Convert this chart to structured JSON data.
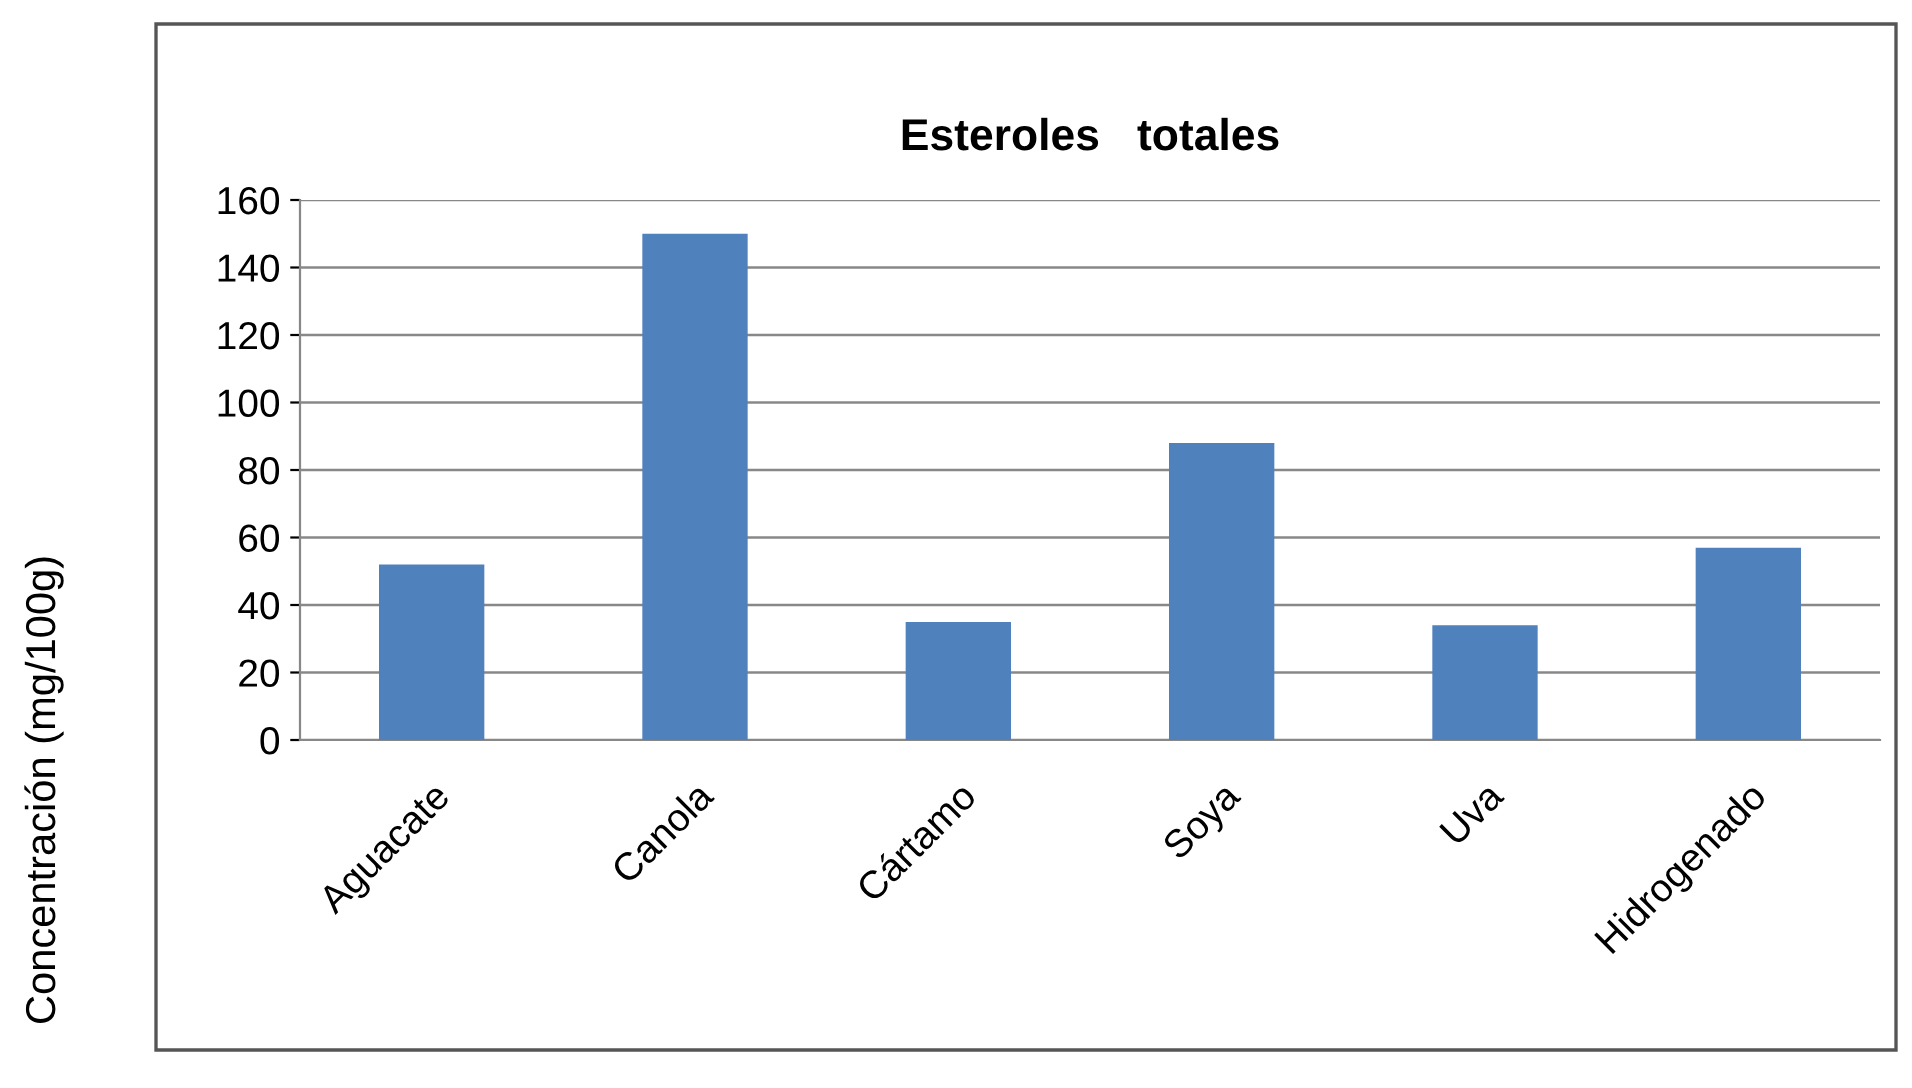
{
  "chart_data": {
    "type": "bar",
    "title": "Esteroles   totales",
    "ylabel": "Concentración (mg/100g)",
    "categories": [
      "Aguacate",
      "Canola",
      "Cártamo",
      "Soya",
      "Uva",
      "Hidrogenado"
    ],
    "values": [
      52,
      150,
      35,
      88,
      34,
      57
    ],
    "color": "#4f81bd",
    "ylim": [
      0,
      160
    ],
    "yticks": [
      0,
      20,
      40,
      60,
      80,
      100,
      120,
      140,
      160
    ],
    "grid": "y",
    "legend": false
  }
}
